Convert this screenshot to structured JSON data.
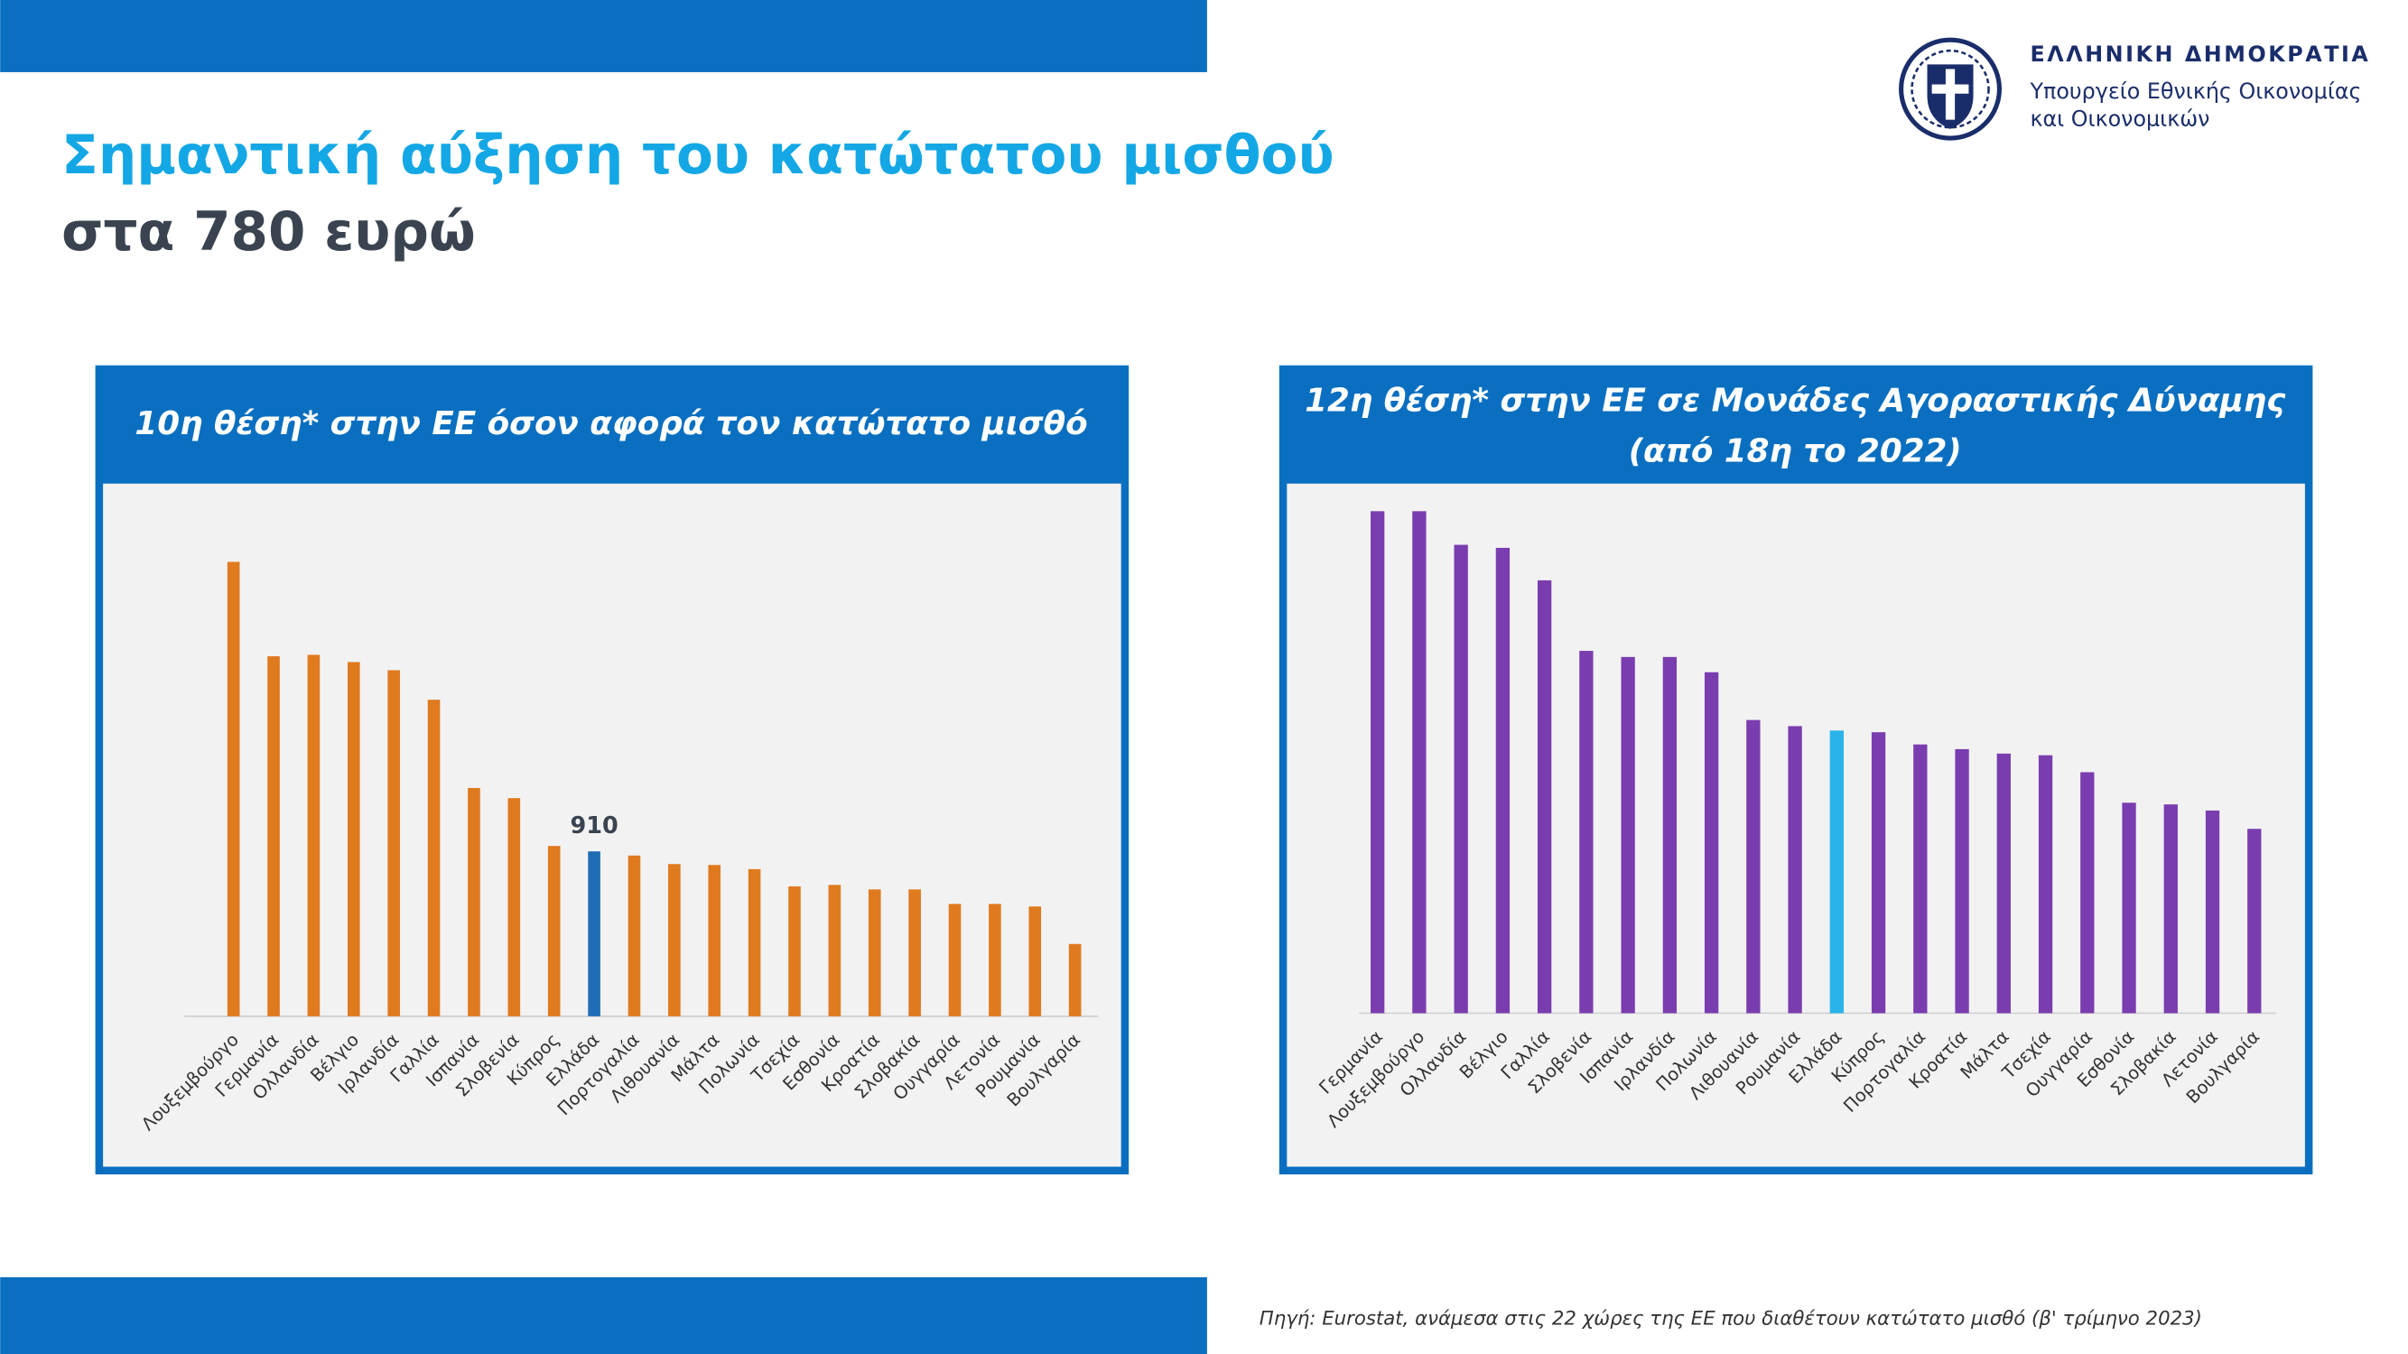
{
  "header": {
    "title_line1": "Σημαντική αύξηση του κατώτατου μισθού",
    "title_line2": "στα 780 ευρώ"
  },
  "logo": {
    "line1": "ΕΛΛΗΝΙΚΗ ΔΗΜΟΚΡΑΤΙΑ",
    "line2": "Υπουργείο Εθνικής Οικονομίας",
    "line3": "και Οικονομικών"
  },
  "chart_data": [
    {
      "type": "bar",
      "title": [
        "10η θέση* στην ΕΕ όσον αφορά τον κατώτατο μισθό"
      ],
      "categories": [
        "Λουξεμβούργο",
        "Γερμανία",
        "Ολλανδία",
        "Βέλγιο",
        "Ιρλανδία",
        "Γαλλία",
        "Ισπανία",
        "Σλοβενία",
        "Κύπρος",
        "Ελλάδα",
        "Πορτογαλία",
        "Λιθουανία",
        "Μάλτα",
        "Πολωνία",
        "Τσεχία",
        "Εσθονία",
        "Κροατία",
        "Σλοβακία",
        "Ουγγαρία",
        "Λετονία",
        "Ρουμανία",
        "Βουλγαρία"
      ],
      "values": [
        2508,
        1987,
        1995,
        1955,
        1910,
        1747,
        1260,
        1204,
        940,
        910,
        887,
        840,
        835,
        812,
        717,
        725,
        700,
        700,
        620,
        620,
        606,
        399
      ],
      "value_labels": [
        null,
        null,
        null,
        null,
        null,
        null,
        null,
        null,
        null,
        "910",
        null,
        null,
        null,
        null,
        null,
        null,
        null,
        null,
        null,
        null,
        null,
        null
      ],
      "colors": [
        "#e07a1f",
        "#e07a1f",
        "#e07a1f",
        "#e07a1f",
        "#e07a1f",
        "#e07a1f",
        "#e07a1f",
        "#e07a1f",
        "#e07a1f",
        "#1f6db5",
        "#e07a1f",
        "#e07a1f",
        "#e07a1f",
        "#e07a1f",
        "#e07a1f",
        "#e07a1f",
        "#e07a1f",
        "#e07a1f",
        "#e07a1f",
        "#e07a1f",
        "#e07a1f",
        "#e07a1f"
      ]
    },
    {
      "type": "bar",
      "title": [
        "12η θέση* στην ΕΕ σε Μονάδες Αγοραστικής Δύναμης",
        "(από 18η το 2022)"
      ],
      "categories": [
        "Γερμανία",
        "Λουξεμβούργο",
        "Ολλανδία",
        "Βέλγιο",
        "Γαλλία",
        "Σλοβενία",
        "Ισπανία",
        "Ιρλανδία",
        "Πολωνία",
        "Λιθουανία",
        "Ρουμανία",
        "Ελλάδα",
        "Κύπρος",
        "Πορτογαλία",
        "Κροατία",
        "Μάλτα",
        "Τσεχία",
        "Ουγγαρία",
        "Εσθονία",
        "Σλοβακία",
        "Λετονία",
        "Βουλγαρία"
      ],
      "values": [
        1808,
        1808,
        1687,
        1676,
        1559,
        1305,
        1283,
        1283,
        1228,
        1056,
        1034,
        1018,
        1012,
        968,
        951,
        935,
        929,
        868,
        758,
        752,
        730,
        664
      ],
      "colors": [
        "#7a3db0",
        "#7a3db0",
        "#7a3db0",
        "#7a3db0",
        "#7a3db0",
        "#7a3db0",
        "#7a3db0",
        "#7a3db0",
        "#7a3db0",
        "#7a3db0",
        "#7a3db0",
        "#29b3e8",
        "#7a3db0",
        "#7a3db0",
        "#7a3db0",
        "#7a3db0",
        "#7a3db0",
        "#7a3db0",
        "#7a3db0",
        "#7a3db0",
        "#7a3db0",
        "#7a3db0"
      ]
    }
  ],
  "footnote": "Πηγή: Eurostat, ανάμεσα στις 22 χώρες της ΕΕ που διαθέτουν κατώτατο μισθό (β' τρίμηνο 2023)"
}
